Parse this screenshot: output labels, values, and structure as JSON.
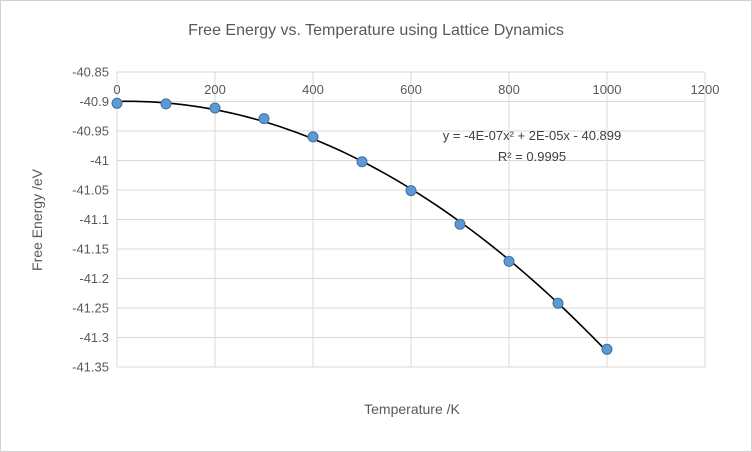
{
  "chart_data": {
    "type": "scatter",
    "title": "Free Energy vs. Temperature using Lattice Dynamics",
    "xlabel": "Temperature /K",
    "ylabel": "Free Energy /eV",
    "xlim": [
      0,
      1200
    ],
    "ylim": [
      -41.35,
      -40.85
    ],
    "x": [
      0,
      100,
      200,
      300,
      400,
      500,
      600,
      700,
      800,
      900,
      1000
    ],
    "y": [
      -40.903,
      -40.904,
      -40.911,
      -40.929,
      -40.96,
      -41.002,
      -41.051,
      -41.108,
      -41.171,
      -41.242,
      -41.32
    ],
    "x_ticks": {
      "values": [
        0,
        200,
        400,
        600,
        800,
        1000,
        1200
      ],
      "labels": [
        "0",
        "200",
        "400",
        "600",
        "800",
        "1000",
        "1200"
      ]
    },
    "y_ticks": {
      "values": [
        -40.85,
        -40.9,
        -40.95,
        -41,
        -41.05,
        -41.1,
        -41.15,
        -41.2,
        -41.25,
        -41.3,
        -41.35
      ],
      "labels": [
        "-40.85",
        "-40.9",
        "-40.95",
        "-41",
        "-41.05",
        "-41.1",
        "-41.15",
        "-41.2",
        "-41.25",
        "-41.3",
        "-41.35"
      ]
    },
    "trendline": {
      "kind": "polynomial",
      "order": 2,
      "range": [
        0,
        1000
      ],
      "equation": "y = -4E-07x² + 2E-05x - 40.899",
      "r_squared": "R² = 0.9995"
    },
    "grid": true,
    "legend": "none",
    "colors": {
      "marker": "#5B9BD5",
      "marker_edge": "#41719C",
      "trendline": "#000000",
      "gridline": "#d9d9d9",
      "text": "#595959"
    }
  }
}
